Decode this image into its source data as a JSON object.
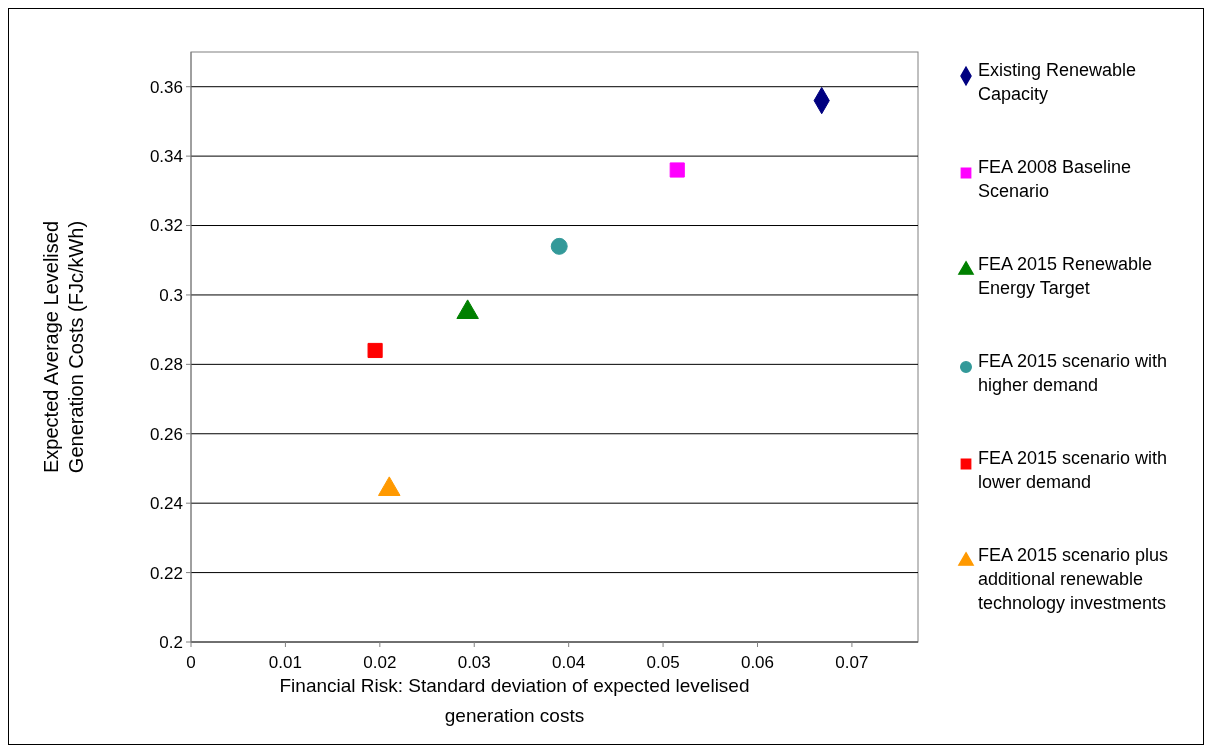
{
  "chart_data": {
    "type": "scatter",
    "xlabel": "Financial Risk: Standard deviation of expected levelised generation costs",
    "ylabel": "Expected Average Levelised Generation Costs (FJc/kWh)",
    "xlim": [
      0,
      0.077
    ],
    "xticks": [
      0,
      0.01,
      0.02,
      0.03,
      0.04,
      0.05,
      0.06,
      0.07
    ],
    "ylim": [
      0.2,
      0.37
    ],
    "yticks": [
      0.2,
      0.22,
      0.24,
      0.26,
      0.28,
      0.3,
      0.32,
      0.34,
      0.36
    ],
    "grid": "y",
    "legend": "right",
    "series": [
      {
        "name": "Existing Renewable Capacity",
        "color": "#000080",
        "marker": "diamond",
        "x": [
          0.0668
        ],
        "values": [
          0.356
        ]
      },
      {
        "name": "FEA 2008 Baseline Scenario",
        "color": "#ff00ff",
        "marker": "square",
        "x": [
          0.0515
        ],
        "values": [
          0.336
        ]
      },
      {
        "name": "FEA 2015 Renewable Energy Target",
        "color": "#008000",
        "marker": "triangle",
        "x": [
          0.0293
        ],
        "values": [
          0.295
        ]
      },
      {
        "name": "FEA 2015 scenario with higher demand",
        "color": "#339999",
        "marker": "circle",
        "x": [
          0.039
        ],
        "values": [
          0.314
        ]
      },
      {
        "name": "FEA 2015 scenario with lower demand",
        "color": "#ff0000",
        "marker": "square",
        "x": [
          0.0195
        ],
        "values": [
          0.284
        ]
      },
      {
        "name": "FEA 2015 scenario plus additional renewable technology investments",
        "color": "#ff9900",
        "marker": "triangle",
        "x": [
          0.021
        ],
        "values": [
          0.244
        ]
      }
    ]
  }
}
